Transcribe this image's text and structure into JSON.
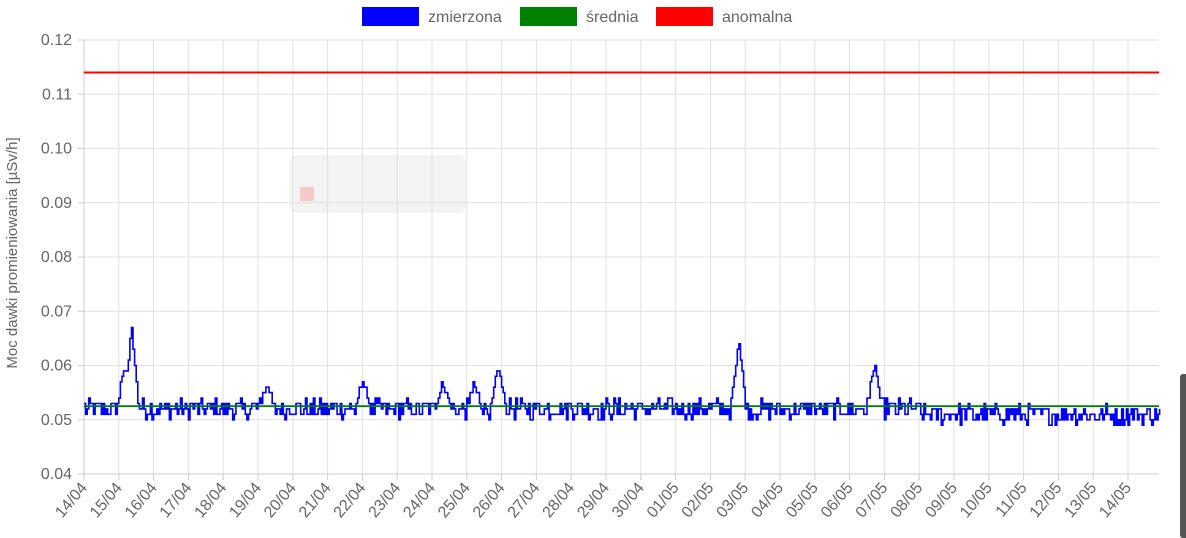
{
  "chart_data": {
    "type": "line",
    "ylabel": "Moc dawki promieniowania [µSv/h]",
    "ylim": [
      0.04,
      0.12
    ],
    "yticks": [
      "0.04",
      "0.05",
      "0.06",
      "0.07",
      "0.08",
      "0.09",
      "0.10",
      "0.11",
      "0.12"
    ],
    "categories": [
      "14/04",
      "15/04",
      "16/04",
      "17/04",
      "18/04",
      "19/04",
      "20/04",
      "21/04",
      "22/04",
      "23/04",
      "24/04",
      "25/04",
      "26/04",
      "27/04",
      "28/04",
      "29/04",
      "30/04",
      "01/05",
      "02/05",
      "03/05",
      "04/05",
      "05/05",
      "06/05",
      "07/05",
      "08/05",
      "09/05",
      "10/05",
      "11/05",
      "12/05",
      "13/05",
      "14/05"
    ],
    "grid": true,
    "legend_position": "top",
    "series": [
      {
        "name": "zmierzona",
        "color": "#0000ff",
        "baseline": 0.052,
        "noise": 0.0018,
        "peaks": [
          {
            "day": 1.35,
            "value": 0.067
          },
          {
            "day": 1.15,
            "value": 0.06
          },
          {
            "day": 5.25,
            "value": 0.057
          },
          {
            "day": 8.0,
            "value": 0.057
          },
          {
            "day": 10.3,
            "value": 0.057
          },
          {
            "day": 11.9,
            "value": 0.06
          },
          {
            "day": 11.2,
            "value": 0.057
          },
          {
            "day": 18.8,
            "value": 0.065
          },
          {
            "day": 22.7,
            "value": 0.06
          }
        ],
        "late_baseline": 0.051
      },
      {
        "name": "średnia",
        "color": "#008000",
        "value": 0.0525
      },
      {
        "name": "anomalna",
        "color": "#ff0000",
        "value": 0.114
      }
    ]
  }
}
